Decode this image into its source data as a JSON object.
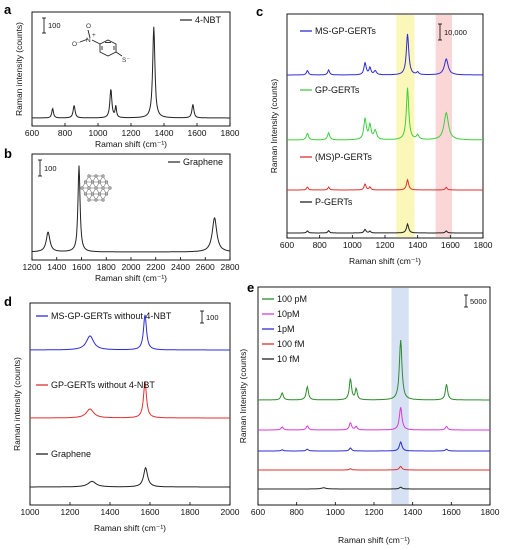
{
  "chart_data": [
    {
      "panel": "a",
      "type": "line",
      "xlabel": "Raman shift (cm⁻¹)",
      "ylabel": "Raman intensity (counts)",
      "xlim": [
        600,
        1800
      ],
      "xticks": [
        600,
        800,
        1000,
        1200,
        1400,
        1600,
        1800
      ],
      "scalebar": "100",
      "series": [
        {
          "name": "4-NBT",
          "color": "#222222",
          "peaks": [
            [
              725,
              0.1,
              6
            ],
            [
              855,
              0.13,
              7
            ],
            [
              1078,
              0.3,
              7
            ],
            [
              1108,
              0.12,
              5
            ],
            [
              1338,
              0.95,
              8
            ],
            [
              1575,
              0.14,
              7
            ]
          ]
        }
      ],
      "inset": {
        "nitro_N": "N",
        "nitro_plus": "+",
        "nitro_O": "O",
        "nitro_Ominus": "O⁻",
        "thiolate": "S⁻"
      }
    },
    {
      "panel": "b",
      "type": "line",
      "xlabel": "Raman shift (cm⁻¹)",
      "ylabel": "",
      "xlim": [
        1200,
        2800
      ],
      "xticks": [
        1200,
        1400,
        1600,
        1800,
        2000,
        2200,
        2400,
        2600,
        2800
      ],
      "scalebar": "100",
      "series": [
        {
          "name": "Graphene",
          "color": "#222222",
          "peaks": [
            [
              1330,
              0.22,
              18
            ],
            [
              1580,
              0.96,
              10
            ],
            [
              2675,
              0.38,
              22
            ]
          ]
        }
      ]
    },
    {
      "panel": "c",
      "type": "line",
      "xlabel": "Raman shift (cm⁻¹)",
      "ylabel": "Raman Intensity (counts)",
      "xlim": [
        600,
        1800
      ],
      "xticks": [
        600,
        800,
        1000,
        1200,
        1400,
        1600,
        1800
      ],
      "scalebar": "10,000",
      "highlights": [
        {
          "from": 1270,
          "to": 1380,
          "color": "#f8f4a0"
        },
        {
          "from": 1510,
          "to": 1610,
          "color": "#f8c8c8"
        }
      ],
      "series": [
        {
          "name": "MS-GP-GERTs",
          "color": "#2d2dd8",
          "amp": 1.0,
          "peaks": [
            [
              725,
              0.09,
              7
            ],
            [
              855,
              0.1,
              7
            ],
            [
              1078,
              0.24,
              8
            ],
            [
              1108,
              0.14,
              7
            ],
            [
              1140,
              0.08,
              9
            ],
            [
              1338,
              0.82,
              9
            ],
            [
              1400,
              0.05,
              8
            ],
            [
              1575,
              0.32,
              14
            ]
          ]
        },
        {
          "name": "GP-GERTs",
          "color": "#3ed03e",
          "amp": 1.0,
          "peaks": [
            [
              725,
              0.1,
              8
            ],
            [
              855,
              0.11,
              8
            ],
            [
              1078,
              0.32,
              9
            ],
            [
              1108,
              0.22,
              8
            ],
            [
              1140,
              0.14,
              10
            ],
            [
              1338,
              0.8,
              9
            ],
            [
              1400,
              0.07,
              9
            ],
            [
              1575,
              0.42,
              16
            ]
          ]
        },
        {
          "name": "(MS)P-GERTs",
          "color": "#e03030",
          "amp": 1.0,
          "peaks": [
            [
              725,
              0.1,
              6
            ],
            [
              855,
              0.1,
              6
            ],
            [
              1078,
              0.2,
              7
            ],
            [
              1108,
              0.1,
              6
            ],
            [
              1338,
              0.34,
              8
            ],
            [
              1575,
              0.09,
              7
            ]
          ]
        },
        {
          "name": "P-GERTs",
          "color": "#222222",
          "amp": 1.0,
          "peaks": [
            [
              725,
              0.07,
              6
            ],
            [
              855,
              0.08,
              6
            ],
            [
              1078,
              0.12,
              7
            ],
            [
              1108,
              0.06,
              6
            ],
            [
              1338,
              0.3,
              8
            ],
            [
              1575,
              0.07,
              7
            ]
          ]
        }
      ]
    },
    {
      "panel": "d",
      "type": "line",
      "xlabel": "Raman shift (cm⁻¹)",
      "ylabel": "Raman intensity (counts)",
      "xlim": [
        1000,
        2000
      ],
      "xticks": [
        1000,
        1200,
        1400,
        1600,
        1800,
        2000
      ],
      "scalebar": "100",
      "series": [
        {
          "name": "MS-GP-GERTs without 4-NBT",
          "color": "#2d2dd8",
          "peaks": [
            [
              1300,
              0.28,
              22
            ],
            [
              1575,
              0.7,
              9
            ]
          ]
        },
        {
          "name": "GP-GERTs without 4-NBT",
          "color": "#e03030",
          "peaks": [
            [
              1300,
              0.18,
              22
            ],
            [
              1575,
              0.72,
              9
            ]
          ]
        },
        {
          "name": "Graphene",
          "color": "#222222",
          "peaks": [
            [
              1310,
              0.14,
              24
            ],
            [
              1578,
              0.48,
              12
            ]
          ]
        }
      ]
    },
    {
      "panel": "e",
      "type": "line",
      "xlabel": "Raman shift (cm⁻¹)",
      "ylabel": "Raman Intensity (counts)",
      "xlim": [
        600,
        1800
      ],
      "xticks": [
        600,
        800,
        1000,
        1200,
        1400,
        1600,
        1800
      ],
      "scalebar": "5000",
      "highlights": [
        {
          "from": 1290,
          "to": 1380,
          "color": "#c8d8f0"
        }
      ],
      "series": [
        {
          "name": "100 pM",
          "color": "#2e8b2e",
          "peaks": [
            [
              725,
              0.12,
              7
            ],
            [
              855,
              0.22,
              7
            ],
            [
              1078,
              0.35,
              7
            ],
            [
              1108,
              0.18,
              6
            ],
            [
              1338,
              1.0,
              8
            ],
            [
              1575,
              0.26,
              7
            ]
          ]
        },
        {
          "name": "10pM",
          "color": "#d83ad8",
          "peaks": [
            [
              725,
              0.05,
              7
            ],
            [
              855,
              0.07,
              7
            ],
            [
              1078,
              0.12,
              7
            ],
            [
              1108,
              0.06,
              6
            ],
            [
              1338,
              0.38,
              8
            ],
            [
              1575,
              0.06,
              7
            ]
          ]
        },
        {
          "name": "1pM",
          "color": "#2d2dd8",
          "peaks": [
            [
              725,
              0.02,
              7
            ],
            [
              855,
              0.03,
              7
            ],
            [
              1078,
              0.05,
              7
            ],
            [
              1338,
              0.15,
              8
            ],
            [
              1575,
              0.03,
              7
            ]
          ]
        },
        {
          "name": "100 fM",
          "color": "#e03030",
          "peaks": [
            [
              1078,
              0.02,
              7
            ],
            [
              1338,
              0.06,
              8
            ]
          ]
        },
        {
          "name": "10 fM",
          "color": "#222222",
          "peaks": [
            [
              940,
              0.02,
              15
            ],
            [
              1338,
              0.03,
              8
            ]
          ]
        }
      ]
    }
  ]
}
